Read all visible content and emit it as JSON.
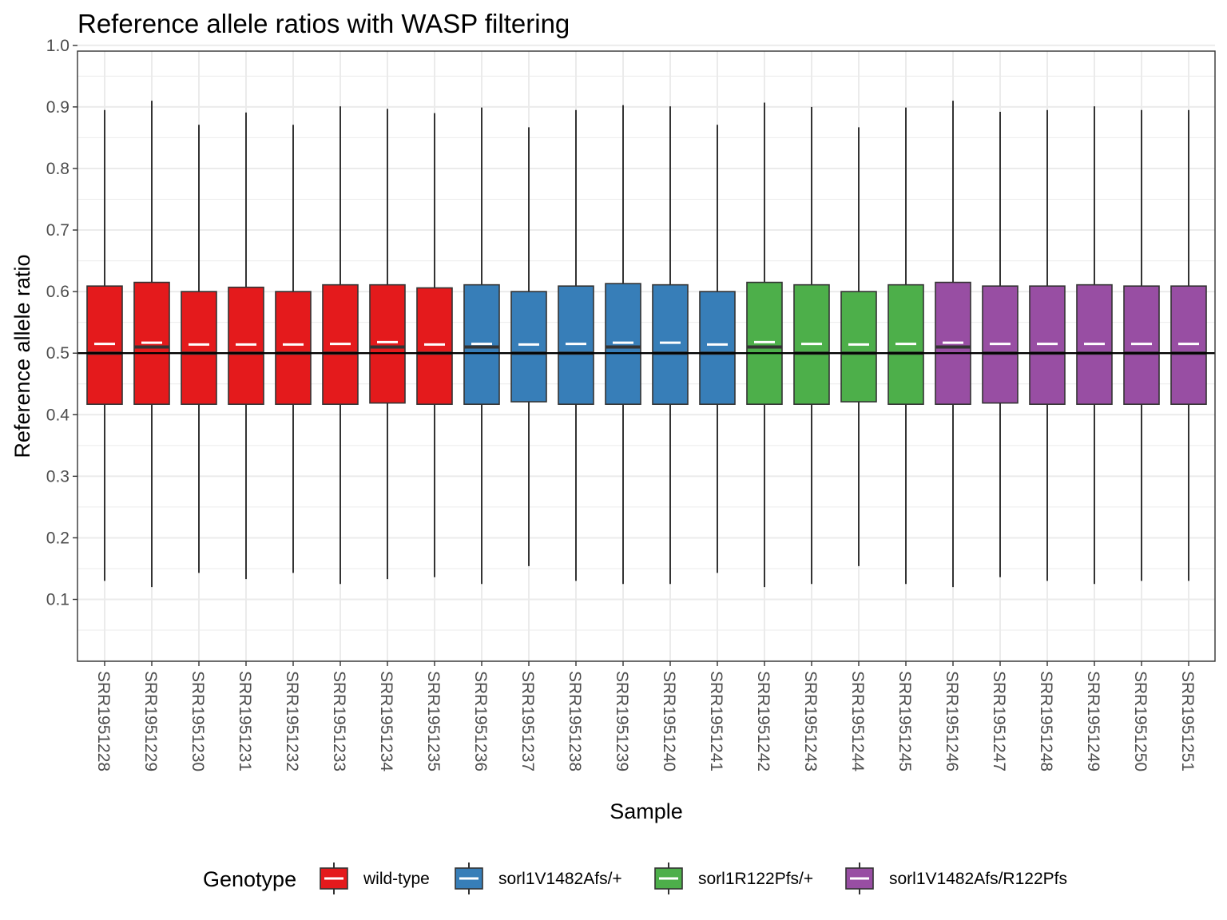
{
  "chart_data": {
    "type": "box",
    "title": "Reference allele ratios with WASP filtering",
    "xlabel": "Sample",
    "ylabel": "Reference allele ratio",
    "ylim": [
      0,
      1.0
    ],
    "yticks": [
      0.1,
      0.2,
      0.3,
      0.4,
      0.5,
      0.6,
      0.7,
      0.8,
      0.9,
      1.0
    ],
    "ytick_labels": [
      "0.1",
      "0.2",
      "0.3",
      "0.4",
      "0.5",
      "0.6",
      "0.7",
      "0.8",
      "0.9",
      "1.0"
    ],
    "reference_line": 0.5,
    "grid": true,
    "legend": {
      "title": "Genotype",
      "position": "bottom",
      "entries": [
        {
          "label": "wild-type",
          "color": "#e41a1c"
        },
        {
          "label": "sorl1V1482Afs/+",
          "color": "#377eb8"
        },
        {
          "label": "sorl1R122Pfs/+",
          "color": "#4daf4a"
        },
        {
          "label": "sorl1V1482Afs/R122Pfs",
          "color": "#984ea3"
        }
      ]
    },
    "samples": [
      {
        "name": "SRR1951228",
        "genotype": 0,
        "lower": 0.13,
        "q1": 0.417,
        "median": 0.5,
        "q3": 0.609,
        "upper": 0.895,
        "mean": 0.515
      },
      {
        "name": "SRR1951229",
        "genotype": 0,
        "lower": 0.12,
        "q1": 0.417,
        "median": 0.51,
        "q3": 0.615,
        "upper": 0.91,
        "mean": 0.517
      },
      {
        "name": "SRR1951230",
        "genotype": 0,
        "lower": 0.143,
        "q1": 0.417,
        "median": 0.5,
        "q3": 0.6,
        "upper": 0.871,
        "mean": 0.514
      },
      {
        "name": "SRR1951231",
        "genotype": 0,
        "lower": 0.133,
        "q1": 0.417,
        "median": 0.5,
        "q3": 0.607,
        "upper": 0.891,
        "mean": 0.514
      },
      {
        "name": "SRR1951232",
        "genotype": 0,
        "lower": 0.143,
        "q1": 0.417,
        "median": 0.5,
        "q3": 0.6,
        "upper": 0.871,
        "mean": 0.514
      },
      {
        "name": "SRR1951233",
        "genotype": 0,
        "lower": 0.125,
        "q1": 0.417,
        "median": 0.5,
        "q3": 0.611,
        "upper": 0.901,
        "mean": 0.515
      },
      {
        "name": "SRR1951234",
        "genotype": 0,
        "lower": 0.133,
        "q1": 0.419,
        "median": 0.51,
        "q3": 0.611,
        "upper": 0.897,
        "mean": 0.518
      },
      {
        "name": "SRR1951235",
        "genotype": 0,
        "lower": 0.136,
        "q1": 0.417,
        "median": 0.5,
        "q3": 0.606,
        "upper": 0.89,
        "mean": 0.514
      },
      {
        "name": "SRR1951236",
        "genotype": 1,
        "lower": 0.125,
        "q1": 0.417,
        "median": 0.51,
        "q3": 0.611,
        "upper": 0.899,
        "mean": 0.515
      },
      {
        "name": "SRR1951237",
        "genotype": 1,
        "lower": 0.154,
        "q1": 0.421,
        "median": 0.5,
        "q3": 0.6,
        "upper": 0.867,
        "mean": 0.514
      },
      {
        "name": "SRR1951238",
        "genotype": 1,
        "lower": 0.13,
        "q1": 0.417,
        "median": 0.5,
        "q3": 0.609,
        "upper": 0.895,
        "mean": 0.515
      },
      {
        "name": "SRR1951239",
        "genotype": 1,
        "lower": 0.125,
        "q1": 0.417,
        "median": 0.51,
        "q3": 0.613,
        "upper": 0.903,
        "mean": 0.517
      },
      {
        "name": "SRR1951240",
        "genotype": 1,
        "lower": 0.125,
        "q1": 0.417,
        "median": 0.5,
        "q3": 0.611,
        "upper": 0.901,
        "mean": 0.517
      },
      {
        "name": "SRR1951241",
        "genotype": 1,
        "lower": 0.143,
        "q1": 0.417,
        "median": 0.5,
        "q3": 0.6,
        "upper": 0.871,
        "mean": 0.514
      },
      {
        "name": "SRR1951242",
        "genotype": 2,
        "lower": 0.12,
        "q1": 0.417,
        "median": 0.51,
        "q3": 0.615,
        "upper": 0.907,
        "mean": 0.518
      },
      {
        "name": "SRR1951243",
        "genotype": 2,
        "lower": 0.125,
        "q1": 0.417,
        "median": 0.5,
        "q3": 0.611,
        "upper": 0.9,
        "mean": 0.515
      },
      {
        "name": "SRR1951244",
        "genotype": 2,
        "lower": 0.154,
        "q1": 0.421,
        "median": 0.5,
        "q3": 0.6,
        "upper": 0.867,
        "mean": 0.514
      },
      {
        "name": "SRR1951245",
        "genotype": 2,
        "lower": 0.125,
        "q1": 0.417,
        "median": 0.5,
        "q3": 0.611,
        "upper": 0.899,
        "mean": 0.515
      },
      {
        "name": "SRR1951246",
        "genotype": 3,
        "lower": 0.12,
        "q1": 0.417,
        "median": 0.51,
        "q3": 0.615,
        "upper": 0.91,
        "mean": 0.517
      },
      {
        "name": "SRR1951247",
        "genotype": 3,
        "lower": 0.136,
        "q1": 0.419,
        "median": 0.5,
        "q3": 0.609,
        "upper": 0.892,
        "mean": 0.515
      },
      {
        "name": "SRR1951248",
        "genotype": 3,
        "lower": 0.13,
        "q1": 0.417,
        "median": 0.5,
        "q3": 0.609,
        "upper": 0.895,
        "mean": 0.515
      },
      {
        "name": "SRR1951249",
        "genotype": 3,
        "lower": 0.125,
        "q1": 0.417,
        "median": 0.5,
        "q3": 0.611,
        "upper": 0.901,
        "mean": 0.515
      },
      {
        "name": "SRR1951250",
        "genotype": 3,
        "lower": 0.13,
        "q1": 0.417,
        "median": 0.5,
        "q3": 0.609,
        "upper": 0.895,
        "mean": 0.515
      },
      {
        "name": "SRR1951251",
        "genotype": 3,
        "lower": 0.13,
        "q1": 0.417,
        "median": 0.5,
        "q3": 0.609,
        "upper": 0.895,
        "mean": 0.515
      }
    ]
  }
}
